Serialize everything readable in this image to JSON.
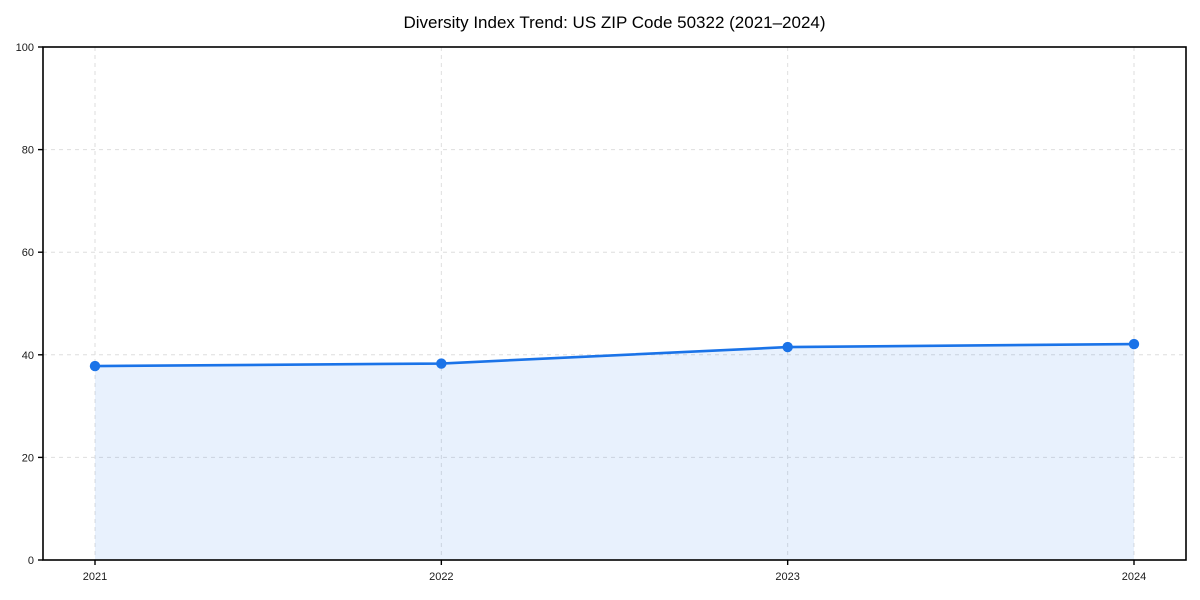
{
  "chart_data": {
    "type": "line",
    "title": "Diversity Index Trend: US ZIP Code 50322 (2021–2024)",
    "categories": [
      "2021",
      "2022",
      "2023",
      "2024"
    ],
    "series": [
      {
        "name": "Diversity Index",
        "values": [
          37.8,
          38.3,
          41.5,
          42.1
        ]
      }
    ],
    "xlabel": "",
    "ylabel": "",
    "ylim": [
      0,
      100
    ],
    "yticks": [
      0,
      20,
      40,
      60,
      80,
      100
    ],
    "grid": "dashed both axes",
    "legend": "none",
    "line_color": "#1a73e8",
    "marker_color": "#1a73e8",
    "area_fill_color": "#1a73e8",
    "area_fill_opacity": 0.1,
    "grid_color": "#dedede",
    "spine_color": "#000000",
    "background_color": "#ffffff"
  }
}
